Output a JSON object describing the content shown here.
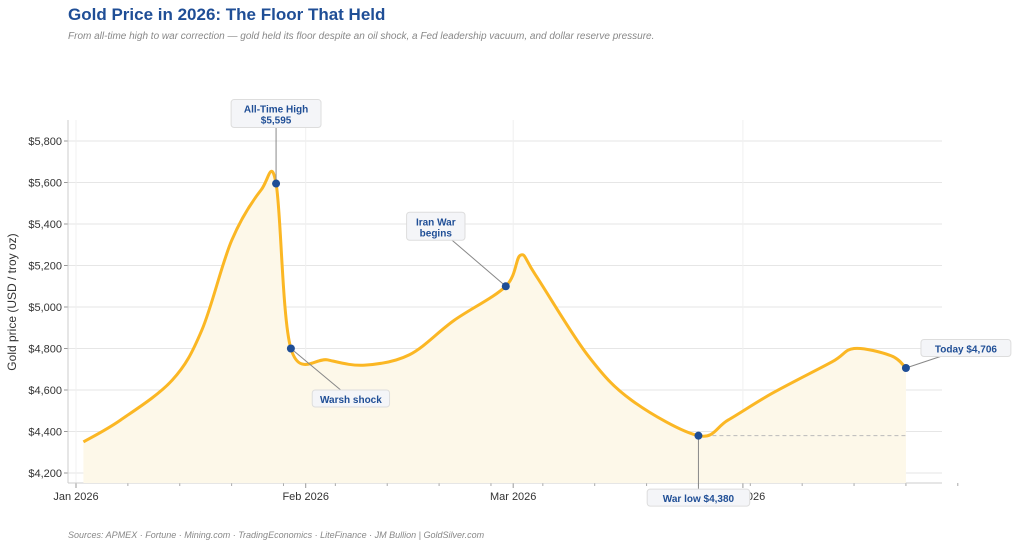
{
  "chart_data": {
    "type": "area",
    "title": "Gold Price in 2026: The Floor That Held",
    "subtitle": "From all-time high to war correction — gold held its floor despite an oil shock, a Fed leadership vacuum, and dollar reserve pressure.",
    "ylabel": "Gold price  (USD / troy oz)",
    "xlabel": "",
    "ylim": [
      4150,
      5900
    ],
    "xlim": [
      "2025-12-31",
      "2026-05-01"
    ],
    "yticks": [
      4200,
      4400,
      4600,
      4800,
      5000,
      5200,
      5400,
      5600,
      5800
    ],
    "ytick_labels": [
      "$4,200",
      "$4,400",
      "$4,600",
      "$4,800",
      "$5,000",
      "$5,200",
      "$5,400",
      "$5,600",
      "$5,800"
    ],
    "xticks": [
      "2026-01-01",
      "2026-02-01",
      "2026-03-01",
      "2026-04-01"
    ],
    "xtick_labels": [
      "Jan 2026",
      "Feb 2026",
      "Mar 2026",
      "Apr 2026"
    ],
    "grid": true,
    "line_color": "#fbb724",
    "fill_color": "#fdf8e9",
    "marker_color": "#1f4e96",
    "series": [
      {
        "x": [
          "2026-01-02",
          "2026-01-07",
          "2026-01-14",
          "2026-01-18",
          "2026-01-22",
          "2026-01-26",
          "2026-01-28",
          "2026-01-30",
          "2026-02-04",
          "2026-02-09",
          "2026-02-15",
          "2026-02-21",
          "2026-02-28",
          "2026-03-02",
          "2026-03-04",
          "2026-03-11",
          "2026-03-17",
          "2026-03-26",
          "2026-03-30",
          "2026-04-05",
          "2026-04-13",
          "2026-04-16",
          "2026-04-21",
          "2026-04-23"
        ],
        "y": [
          4350,
          4455,
          4648,
          4890,
          5320,
          5565,
          5595,
          4800,
          4745,
          4720,
          4770,
          4935,
          5100,
          5250,
          5155,
          4770,
          4550,
          4380,
          4455,
          4585,
          4735,
          4800,
          4765,
          4706
        ]
      }
    ],
    "floor_line": 4380,
    "annotations": [
      {
        "x": "2026-01-28",
        "y": 5595,
        "lines": [
          "All-Time High",
          "$5,595"
        ]
      },
      {
        "x": "2026-01-30",
        "y": 4800,
        "lines": [
          "Warsh shock"
        ]
      },
      {
        "x": "2026-02-28",
        "y": 5100,
        "lines": [
          "Iran War",
          "begins"
        ]
      },
      {
        "x": "2026-03-26",
        "y": 4380,
        "lines": [
          "War low  $4,380"
        ]
      },
      {
        "x": "2026-04-23",
        "y": 4706,
        "lines": [
          "Today  $4,706"
        ]
      }
    ]
  },
  "source": "Sources: APMEX · Fortune · Mining.com · TradingEconomics · LiteFinance · JM Bullion  |  GoldSilver.com"
}
